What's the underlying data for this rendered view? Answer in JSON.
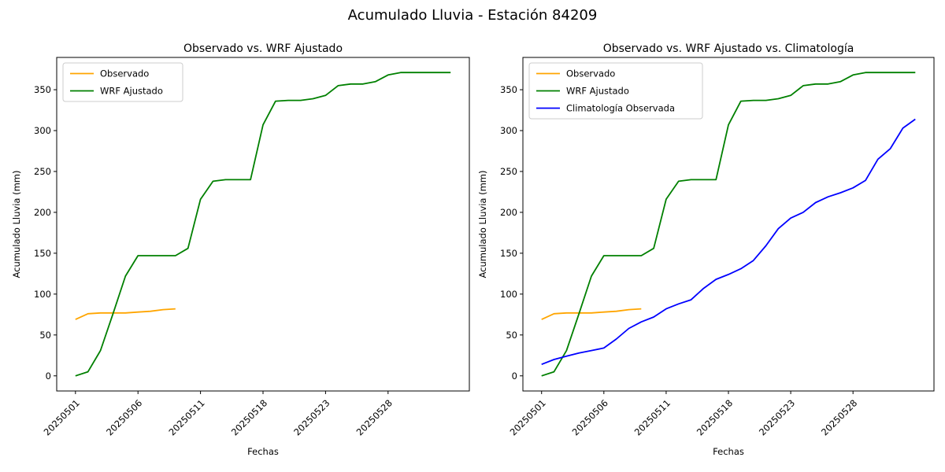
{
  "figure": {
    "title": "Acumulado Lluvia - Estación 84209"
  },
  "colors": {
    "observado": "#FFA500",
    "wrf_ajustado": "#008000",
    "climatologia": "#0000FF",
    "spine": "#000000",
    "legend_border": "#cccccc",
    "legend_background": "#ffffff"
  },
  "chart_data": [
    {
      "type": "line",
      "title": "Observado vs. WRF Ajustado",
      "xlabel": "Fechas",
      "ylabel": "Acumulado Lluvia (mm)",
      "grid": false,
      "legend_position": "upper left",
      "n_points": 31,
      "xlim": [
        -1.5,
        31.5
      ],
      "ylim": [
        -18.5,
        389.5
      ],
      "y_ticks": [
        0,
        50,
        100,
        150,
        200,
        250,
        300,
        350
      ],
      "x_tick_positions": [
        0,
        5,
        10,
        15,
        20,
        25
      ],
      "x_tick_labels": [
        "20250501",
        "20250506",
        "20250511",
        "20250518",
        "20250523",
        "20250528"
      ],
      "series": [
        {
          "name": "Observado",
          "color": "#FFA500",
          "values": [
            69,
            76,
            77,
            77,
            77,
            78,
            79,
            81,
            82
          ]
        },
        {
          "name": "WRF Ajustado",
          "color": "#008000",
          "values": [
            0,
            5,
            31,
            76,
            122,
            147,
            147,
            147,
            147,
            156,
            216,
            238,
            240,
            240,
            240,
            307,
            336,
            337,
            337,
            339,
            343,
            355,
            357,
            357,
            360,
            368,
            371,
            371,
            371,
            371,
            371
          ]
        }
      ]
    },
    {
      "type": "line",
      "title": "Observado vs. WRF Ajustado vs. Climatología",
      "xlabel": "Fechas",
      "ylabel": "Acumulado Lluvia (mm)",
      "grid": false,
      "legend_position": "upper left",
      "n_points": 31,
      "xlim": [
        -1.5,
        31.5
      ],
      "ylim": [
        -18.5,
        389.5
      ],
      "y_ticks": [
        0,
        50,
        100,
        150,
        200,
        250,
        300,
        350
      ],
      "x_tick_positions": [
        0,
        5,
        10,
        15,
        20,
        25
      ],
      "x_tick_labels": [
        "20250501",
        "20250506",
        "20250511",
        "20250518",
        "20250523",
        "20250528"
      ],
      "series": [
        {
          "name": "Observado",
          "color": "#FFA500",
          "values": [
            69,
            76,
            77,
            77,
            77,
            78,
            79,
            81,
            82
          ]
        },
        {
          "name": "WRF Ajustado",
          "color": "#008000",
          "values": [
            0,
            5,
            31,
            76,
            122,
            147,
            147,
            147,
            147,
            156,
            216,
            238,
            240,
            240,
            240,
            307,
            336,
            337,
            337,
            339,
            343,
            355,
            357,
            357,
            360,
            368,
            371,
            371,
            371,
            371,
            371
          ]
        },
        {
          "name": "Climatología Observada",
          "color": "#0000FF",
          "values": [
            14,
            20,
            24,
            28,
            31,
            34,
            45,
            58,
            66,
            72,
            82,
            88,
            93,
            107,
            118,
            124,
            131,
            141,
            159,
            180,
            193,
            200,
            212,
            219,
            224,
            230,
            239,
            265,
            278,
            303,
            314
          ]
        }
      ]
    }
  ]
}
